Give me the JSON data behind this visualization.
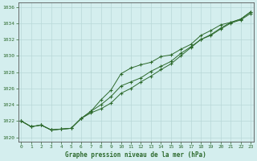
{
  "x": [
    0,
    1,
    2,
    3,
    4,
    5,
    6,
    7,
    8,
    9,
    10,
    11,
    12,
    13,
    14,
    15,
    16,
    17,
    18,
    19,
    20,
    21,
    22,
    23
  ],
  "line_upper": [
    1022.0,
    1021.3,
    1021.5,
    1020.9,
    1021.0,
    1021.1,
    1022.3,
    1023.2,
    1024.6,
    1025.8,
    1027.8,
    1028.5,
    1028.9,
    1029.2,
    1029.9,
    1030.1,
    1030.8,
    1031.4,
    1032.5,
    1033.1,
    1033.8,
    1034.1,
    1034.5,
    1035.4
  ],
  "line_mid": [
    1022.0,
    1021.3,
    1021.5,
    1020.9,
    1021.0,
    1021.1,
    1022.3,
    1023.2,
    1024.0,
    1025.0,
    1026.3,
    1026.8,
    1027.3,
    1028.1,
    1028.7,
    1029.3,
    1030.3,
    1031.1,
    1032.0,
    1032.6,
    1033.4,
    1034.1,
    1034.5,
    1035.4
  ],
  "line_lower": [
    1022.0,
    1021.3,
    1021.5,
    1020.9,
    1021.0,
    1021.1,
    1022.3,
    1023.0,
    1023.5,
    1024.2,
    1025.4,
    1026.0,
    1026.8,
    1027.5,
    1028.3,
    1029.0,
    1030.0,
    1031.0,
    1032.0,
    1032.5,
    1033.3,
    1034.0,
    1034.4,
    1035.2
  ],
  "line_color": "#2d6a2d",
  "bg_color": "#d4eeee",
  "grid_color": "#b8d8d8",
  "title": "Graphe pression niveau de la mer (hPa)",
  "ylim": [
    1019.5,
    1036.5
  ],
  "yticks": [
    1020,
    1022,
    1024,
    1026,
    1028,
    1030,
    1032,
    1034,
    1036
  ],
  "xlim": [
    -0.3,
    23.3
  ],
  "xticks": [
    0,
    1,
    2,
    3,
    4,
    5,
    6,
    7,
    8,
    9,
    10,
    11,
    12,
    13,
    14,
    15,
    16,
    17,
    18,
    19,
    20,
    21,
    22,
    23
  ]
}
